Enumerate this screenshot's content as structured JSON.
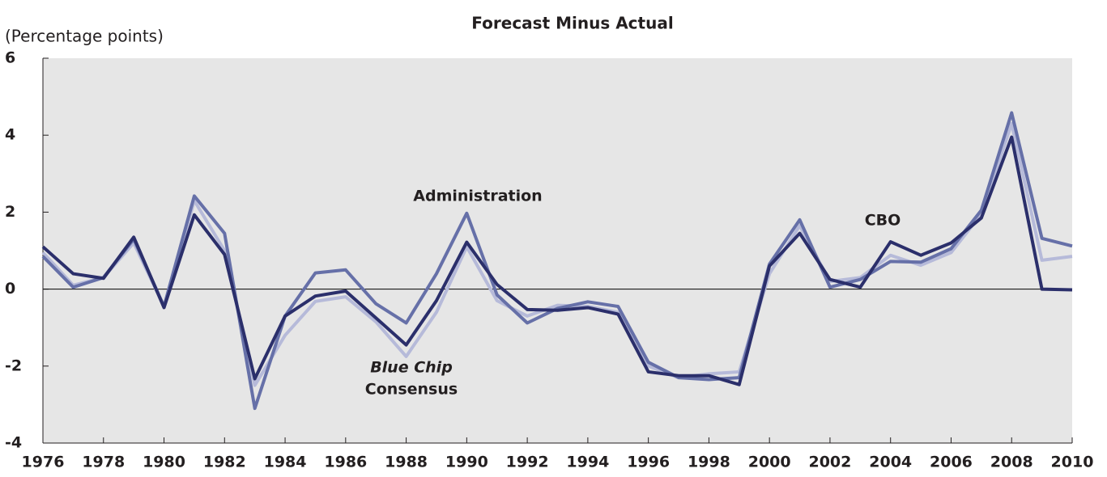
{
  "chart_data": {
    "type": "line",
    "title": "Forecast Minus Actual",
    "y_axis_label": "(Percentage points)",
    "x": [
      1976,
      1977,
      1978,
      1979,
      1980,
      1981,
      1982,
      1983,
      1984,
      1985,
      1986,
      1987,
      1988,
      1989,
      1990,
      1991,
      1992,
      1993,
      1994,
      1995,
      1996,
      1997,
      1998,
      1999,
      2000,
      2001,
      2002,
      2003,
      2004,
      2005,
      2006,
      2007,
      2008,
      2009,
      2010
    ],
    "series": [
      {
        "label": [
          "Blue Chip",
          "Consensus"
        ],
        "label_italic": [
          true,
          false
        ],
        "color": "#b6bad9",
        "values": [
          0.95,
          0.1,
          0.3,
          1.2,
          -0.45,
          2.3,
          1.0,
          -2.5,
          -1.2,
          -0.32,
          -0.2,
          -0.85,
          -1.75,
          -0.6,
          1.1,
          -0.3,
          -0.7,
          -0.42,
          -0.45,
          -0.6,
          -2.0,
          -2.3,
          -2.2,
          -2.15,
          0.4,
          1.65,
          0.2,
          0.3,
          0.88,
          0.62,
          0.95,
          1.95,
          4.3,
          0.75,
          0.85
        ]
      },
      {
        "label": [
          "Administration"
        ],
        "label_italic": [
          false
        ],
        "color": "#6670a8",
        "values": [
          0.85,
          0.05,
          0.3,
          1.3,
          -0.45,
          2.42,
          1.45,
          -3.1,
          -0.7,
          0.42,
          0.5,
          -0.38,
          -0.88,
          0.4,
          1.97,
          -0.15,
          -0.88,
          -0.5,
          -0.33,
          -0.45,
          -1.9,
          -2.3,
          -2.35,
          -2.3,
          0.65,
          1.8,
          0.05,
          0.25,
          0.72,
          0.7,
          1.05,
          2.05,
          4.58,
          1.32,
          1.12
        ]
      },
      {
        "label": [
          "CBO"
        ],
        "label_italic": [
          false
        ],
        "color": "#2b2f6b",
        "values": [
          1.1,
          0.4,
          0.28,
          1.35,
          -0.48,
          1.93,
          0.9,
          -2.33,
          -0.7,
          -0.18,
          -0.05,
          -0.75,
          -1.45,
          -0.3,
          1.22,
          0.12,
          -0.53,
          -0.55,
          -0.48,
          -0.65,
          -2.15,
          -2.25,
          -2.25,
          -2.48,
          0.6,
          1.45,
          0.25,
          0.05,
          1.23,
          0.88,
          1.2,
          1.85,
          3.95,
          0.0,
          -0.02
        ]
      }
    ],
    "xlim": [
      1976,
      2010
    ],
    "xticks": [
      1976,
      1978,
      1980,
      1982,
      1984,
      1986,
      1988,
      1990,
      1992,
      1994,
      1996,
      1998,
      2000,
      2002,
      2004,
      2006,
      2008,
      2010
    ],
    "ylim": [
      -4,
      6
    ],
    "yticks": [
      -4,
      -2,
      0,
      2,
      4,
      6
    ]
  }
}
